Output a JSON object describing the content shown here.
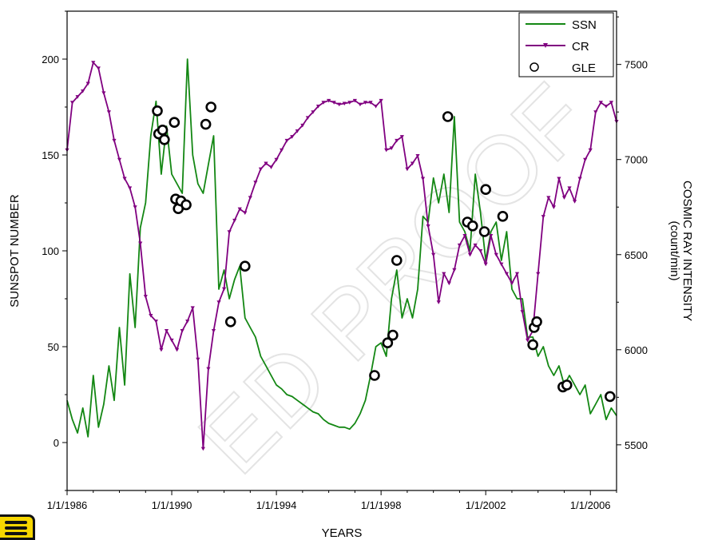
{
  "watermark_text": "ED PROOF",
  "colors": {
    "ssn": "#138713",
    "cr": "#800080",
    "gle": "#000000",
    "axis": "#000000",
    "badge": "#f6d600"
  },
  "icons": {
    "menu": "menu-icon"
  },
  "chart_data": {
    "type": "line",
    "title": "",
    "xlabel": "YEARS",
    "ylabel": "SUNSPOT NUMBER",
    "y2label": [
      "COSMIC RAY INTENSITY",
      "(count/min)"
    ],
    "x_ticks": [
      "1/1/1986",
      "1/1/1990",
      "1/1/1994",
      "1/1/1998",
      "1/1/2002",
      "1/1/2006"
    ],
    "x_tick_years": [
      1986,
      1990,
      1994,
      1998,
      2002,
      2006
    ],
    "xlim": [
      1986.0,
      2007.0
    ],
    "ylim": [
      -25,
      225
    ],
    "y_ticks": [
      0,
      50,
      100,
      150,
      200
    ],
    "y2lim": [
      5260,
      7780
    ],
    "y2_ticks": [
      5500,
      6000,
      6500,
      7000,
      7500
    ],
    "grid": false,
    "legend_position": "top-right",
    "legend": [
      "SSN",
      "CR",
      "GLE"
    ],
    "series": [
      {
        "name": "SSN",
        "axis": "left",
        "style": "line",
        "x": [
          1986.0,
          1986.2,
          1986.4,
          1986.6,
          1986.8,
          1987.0,
          1987.2,
          1987.4,
          1987.6,
          1987.8,
          1988.0,
          1988.2,
          1988.4,
          1988.6,
          1988.8,
          1989.0,
          1989.2,
          1989.4,
          1989.6,
          1989.8,
          1990.0,
          1990.2,
          1990.4,
          1990.6,
          1990.8,
          1991.0,
          1991.2,
          1991.4,
          1991.6,
          1991.8,
          1992.0,
          1992.2,
          1992.4,
          1992.6,
          1992.8,
          1993.0,
          1993.2,
          1993.4,
          1993.6,
          1993.8,
          1994.0,
          1994.2,
          1994.4,
          1994.6,
          1994.8,
          1995.0,
          1995.2,
          1995.4,
          1995.6,
          1995.8,
          1996.0,
          1996.2,
          1996.4,
          1996.6,
          1996.8,
          1997.0,
          1997.2,
          1997.4,
          1997.6,
          1997.8,
          1998.0,
          1998.2,
          1998.4,
          1998.6,
          1998.8,
          1999.0,
          1999.2,
          1999.4,
          1999.6,
          1999.8,
          2000.0,
          2000.2,
          2000.4,
          2000.6,
          2000.8,
          2001.0,
          2001.2,
          2001.4,
          2001.6,
          2001.8,
          2002.0,
          2002.2,
          2002.4,
          2002.6,
          2002.8,
          2003.0,
          2003.2,
          2003.4,
          2003.6,
          2003.8,
          2004.0,
          2004.2,
          2004.4,
          2004.6,
          2004.8,
          2005.0,
          2005.2,
          2005.4,
          2005.6,
          2005.8,
          2006.0,
          2006.2,
          2006.4,
          2006.6,
          2006.8,
          2007.0
        ],
        "y": [
          22,
          12,
          5,
          18,
          3,
          35,
          8,
          20,
          40,
          22,
          60,
          30,
          88,
          60,
          112,
          125,
          160,
          178,
          140,
          165,
          140,
          135,
          130,
          200,
          150,
          135,
          130,
          145,
          160,
          80,
          90,
          75,
          85,
          92,
          65,
          60,
          55,
          45,
          40,
          35,
          30,
          28,
          25,
          24,
          22,
          20,
          18,
          16,
          15,
          12,
          10,
          9,
          8,
          8,
          7,
          10,
          15,
          22,
          35,
          50,
          52,
          45,
          75,
          90,
          65,
          75,
          65,
          80,
          118,
          115,
          138,
          125,
          140,
          120,
          170,
          115,
          110,
          100,
          140,
          120,
          95,
          110,
          115,
          95,
          110,
          80,
          75,
          75,
          55,
          55,
          45,
          50,
          40,
          35,
          40,
          30,
          35,
          30,
          25,
          30,
          15,
          20,
          25,
          12,
          18,
          14
        ]
      },
      {
        "name": "CR",
        "axis": "right",
        "style": "line-triangle",
        "x": [
          1986.0,
          1986.2,
          1986.4,
          1986.6,
          1986.8,
          1987.0,
          1987.2,
          1987.4,
          1987.6,
          1987.8,
          1988.0,
          1988.2,
          1988.4,
          1988.6,
          1988.8,
          1989.0,
          1989.2,
          1989.4,
          1989.6,
          1989.8,
          1990.0,
          1990.2,
          1990.4,
          1990.6,
          1990.8,
          1991.0,
          1991.2,
          1991.4,
          1991.6,
          1991.8,
          1992.0,
          1992.2,
          1992.4,
          1992.6,
          1992.8,
          1993.0,
          1993.2,
          1993.4,
          1993.6,
          1993.8,
          1994.0,
          1994.2,
          1994.4,
          1994.6,
          1994.8,
          1995.0,
          1995.2,
          1995.4,
          1995.6,
          1995.8,
          1996.0,
          1996.2,
          1996.4,
          1996.6,
          1996.8,
          1997.0,
          1997.2,
          1997.4,
          1997.6,
          1997.8,
          1998.0,
          1998.2,
          1998.4,
          1998.6,
          1998.8,
          1999.0,
          1999.2,
          1999.4,
          1999.6,
          1999.8,
          2000.0,
          2000.2,
          2000.4,
          2000.6,
          2000.8,
          2001.0,
          2001.2,
          2001.4,
          2001.6,
          2001.8,
          2002.0,
          2002.2,
          2002.4,
          2002.6,
          2002.8,
          2003.0,
          2003.2,
          2003.4,
          2003.6,
          2003.8,
          2004.0,
          2004.2,
          2004.4,
          2004.6,
          2004.8,
          2005.0,
          2005.2,
          2005.4,
          2005.6,
          2005.8,
          2006.0,
          2006.2,
          2006.4,
          2006.6,
          2006.8,
          2007.0
        ],
        "y": [
          7050,
          7300,
          7330,
          7360,
          7400,
          7510,
          7480,
          7350,
          7250,
          7100,
          7000,
          6900,
          6850,
          6750,
          6560,
          6280,
          6180,
          6150,
          6000,
          6100,
          6050,
          6000,
          6100,
          6150,
          6220,
          5950,
          5480,
          5900,
          6100,
          6250,
          6320,
          6620,
          6680,
          6740,
          6720,
          6800,
          6880,
          6950,
          6980,
          6960,
          7000,
          7050,
          7100,
          7120,
          7150,
          7180,
          7220,
          7250,
          7280,
          7300,
          7310,
          7300,
          7290,
          7295,
          7300,
          7310,
          7290,
          7300,
          7300,
          7280,
          7310,
          7050,
          7060,
          7100,
          7120,
          6950,
          6980,
          7020,
          6900,
          6650,
          6500,
          6250,
          6400,
          6350,
          6420,
          6550,
          6600,
          6500,
          6550,
          6520,
          6450,
          6600,
          6500,
          6450,
          6400,
          6350,
          6400,
          6200,
          6050,
          6100,
          6400,
          6700,
          6800,
          6750,
          6900,
          6800,
          6850,
          6780,
          6900,
          7000,
          7050,
          7250,
          7300,
          7280,
          7300,
          7200
        ]
      },
      {
        "name": "GLE",
        "axis": "left",
        "style": "open-circle",
        "x": [
          1989.45,
          1989.5,
          1989.65,
          1989.72,
          1990.1,
          1990.15,
          1990.25,
          1990.35,
          1990.55,
          1991.3,
          1991.5,
          1992.25,
          1992.8,
          1997.75,
          1998.25,
          1998.45,
          1998.6,
          2000.55,
          2001.3,
          2001.5,
          2001.95,
          2002.0,
          2002.65,
          2003.8,
          2003.85,
          2003.95,
          2004.95,
          2005.1,
          2006.75
        ],
        "y": [
          173,
          161,
          163,
          158,
          167,
          127,
          122,
          126,
          124,
          166,
          175,
          63,
          92,
          35,
          52,
          56,
          95,
          170,
          115,
          113,
          110,
          132,
          118,
          51,
          60,
          63,
          29,
          30,
          24
        ]
      }
    ]
  }
}
